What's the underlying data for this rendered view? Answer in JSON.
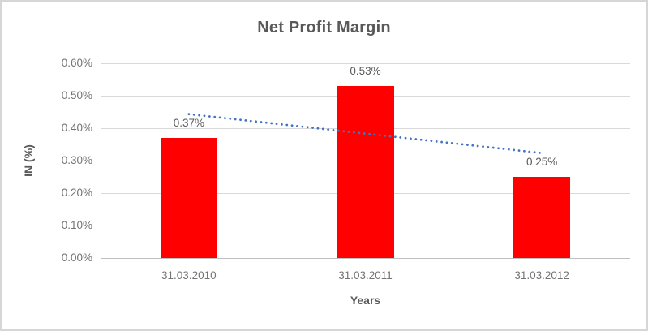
{
  "chart_data": {
    "type": "bar",
    "title": "Net Profit Margin",
    "xlabel": "Years",
    "ylabel": "IN (%)",
    "categories": [
      "31.03.2010",
      "31.03.2011",
      "31.03.2012"
    ],
    "values": [
      0.37,
      0.53,
      0.25
    ],
    "data_labels": [
      "0.37%",
      "0.53%",
      "0.25%"
    ],
    "unit": "%",
    "ylim": [
      0,
      0.6
    ],
    "ytick_step": 0.1,
    "ytick_labels": [
      "0.00%",
      "0.10%",
      "0.20%",
      "0.30%",
      "0.40%",
      "0.50%",
      "0.60%"
    ],
    "grid": true,
    "legend": "none",
    "bar_color": "#ff0000",
    "text_color": "#595959",
    "tick_color": "#737373",
    "gridline_color": "#d9d9d9",
    "trendline": {
      "type": "linear",
      "style": "dotted",
      "color": "#4472c4",
      "start_value": 0.4433,
      "end_value": 0.3233
    }
  }
}
